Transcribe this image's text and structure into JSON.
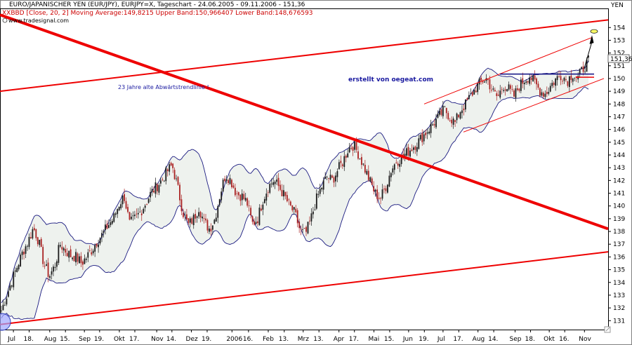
{
  "header": {
    "line1": "EURO/JAPANISCHER YEN (EUR/JPY), EURJPY=X, Tageschart - 24.06.2005 - 09.11.2006 - 151,36",
    "line2": "XXBBD [Close, 20, 2] Moving Average:149,8215 Upper Band:150,966407 Lower Band:148,676593",
    "watermark": "www.tradesignal.com",
    "unit": "YEN"
  },
  "annotations": {
    "trendline_label": "23 Jahre alte Abwärtstrendlinie !",
    "author": "erstellt von oegeat.com",
    "last_price": "151,36"
  },
  "colors": {
    "candle_up": "#1a1a1a",
    "candle_down": "#aa2222",
    "band": "#1a1a80",
    "band_fill": "#eef2ee",
    "trendline": "#ee0000"
  },
  "chart_data": {
    "type": "candlestick",
    "title": "EURO/JAPANISCHER YEN (EUR/JPY), EURJPY=X, Tageschart - 24.06.2005 - 09.11.2006 - 151,36",
    "ylabel": "YEN",
    "ylim": [
      130.3,
      155.5
    ],
    "y_ticks": [
      131,
      132,
      133,
      134,
      135,
      136,
      137,
      138,
      139,
      140,
      141,
      142,
      143,
      144,
      145,
      146,
      147,
      148,
      149,
      150,
      151,
      152,
      153,
      154
    ],
    "x_ticks": [
      "Jul",
      "18.",
      "Aug",
      "15.",
      "Sep",
      "19.",
      "Okt",
      "17.",
      "Nov",
      "14.",
      "Dez",
      "19.",
      "2006",
      "16.",
      "Feb",
      "13.",
      "Mrz",
      "13.",
      "Apr",
      "17.",
      "Mai",
      "15.",
      "Jun",
      "19.",
      "Jul",
      "17.",
      "Aug",
      "14.",
      "Sep",
      "18.",
      "Okt",
      "16.",
      "Nov"
    ],
    "x_tick_pos": [
      0.045,
      0.104,
      0.181,
      0.24,
      0.311,
      0.368,
      0.442,
      0.5,
      0.582,
      0.639,
      0.712,
      0.771,
      0.864,
      0.926,
      1.0,
      1.06,
      1.131,
      1.19,
      1.265,
      1.323,
      1.396,
      1.455,
      1.526,
      1.585,
      1.655,
      1.714,
      1.786,
      1.845,
      1.925,
      1.983,
      2.053,
      2.111,
      2.185
    ],
    "x_tick_scale_note": "",
    "close_path": [
      [
        0,
        131.8
      ],
      [
        0.02,
        133.0
      ],
      [
        0.04,
        134.2
      ],
      [
        0.06,
        135.3
      ],
      [
        0.08,
        136.4
      ],
      [
        0.1,
        137.2
      ],
      [
        0.12,
        138.3
      ],
      [
        0.14,
        137.2
      ],
      [
        0.16,
        135.4
      ],
      [
        0.18,
        134.5
      ],
      [
        0.2,
        135.3
      ],
      [
        0.22,
        137.0
      ],
      [
        0.24,
        136.5
      ],
      [
        0.26,
        136.1
      ],
      [
        0.28,
        136.0
      ],
      [
        0.3,
        135.5
      ],
      [
        0.32,
        136.0
      ],
      [
        0.34,
        136.6
      ],
      [
        0.36,
        137.3
      ],
      [
        0.38,
        137.8
      ],
      [
        0.4,
        138.5
      ],
      [
        0.42,
        139.0
      ],
      [
        0.44,
        140.1
      ],
      [
        0.46,
        140.8
      ],
      [
        0.48,
        138.6
      ],
      [
        0.5,
        139.0
      ],
      [
        0.52,
        139.5
      ],
      [
        0.54,
        140.2
      ],
      [
        0.56,
        141.0
      ],
      [
        0.58,
        141.5
      ],
      [
        0.6,
        142.0
      ],
      [
        0.62,
        142.7
      ],
      [
        0.64,
        143.2
      ],
      [
        0.66,
        141.5
      ],
      [
        0.68,
        139.5
      ],
      [
        0.7,
        138.5
      ],
      [
        0.72,
        139.0
      ],
      [
        0.74,
        139.9
      ],
      [
        0.76,
        138.7
      ],
      [
        0.78,
        138.2
      ],
      [
        0.8,
        139.0
      ],
      [
        0.82,
        141.0
      ],
      [
        0.84,
        142.5
      ],
      [
        0.86,
        142.0
      ],
      [
        0.88,
        141.0
      ],
      [
        0.9,
        140.8
      ],
      [
        0.92,
        140.3
      ],
      [
        0.94,
        138.6
      ],
      [
        0.96,
        139.0
      ],
      [
        0.98,
        140.5
      ],
      [
        1.0,
        141.5
      ],
      [
        1.02,
        142.0
      ],
      [
        1.04,
        141.5
      ],
      [
        1.06,
        140.8
      ],
      [
        1.08,
        140.0
      ],
      [
        1.1,
        139.4
      ],
      [
        1.12,
        138.0
      ],
      [
        1.14,
        137.8
      ],
      [
        1.16,
        139.0
      ],
      [
        1.18,
        140.5
      ],
      [
        1.2,
        141.5
      ],
      [
        1.22,
        142.3
      ],
      [
        1.24,
        142.0
      ],
      [
        1.26,
        142.8
      ],
      [
        1.28,
        143.5
      ],
      [
        1.3,
        144.5
      ],
      [
        1.32,
        144.8
      ],
      [
        1.34,
        144.0
      ],
      [
        1.36,
        143.0
      ],
      [
        1.38,
        142.0
      ],
      [
        1.4,
        141.0
      ],
      [
        1.42,
        140.6
      ],
      [
        1.44,
        141.5
      ],
      [
        1.46,
        142.8
      ],
      [
        1.48,
        143.5
      ],
      [
        1.5,
        143.8
      ],
      [
        1.52,
        144.2
      ],
      [
        1.54,
        144.6
      ],
      [
        1.56,
        145.0
      ],
      [
        1.58,
        145.5
      ],
      [
        1.6,
        146.0
      ],
      [
        1.62,
        146.5
      ],
      [
        1.64,
        147.0
      ],
      [
        1.66,
        147.6
      ],
      [
        1.68,
        147.0
      ],
      [
        1.7,
        146.5
      ],
      [
        1.72,
        147.5
      ],
      [
        1.74,
        148.0
      ],
      [
        1.76,
        148.7
      ],
      [
        1.78,
        149.3
      ],
      [
        1.8,
        149.8
      ],
      [
        1.82,
        150.0
      ],
      [
        1.84,
        149.0
      ],
      [
        1.86,
        148.5
      ],
      [
        1.88,
        149.5
      ],
      [
        1.9,
        149.2
      ],
      [
        1.92,
        148.6
      ],
      [
        1.94,
        149.4
      ],
      [
        1.96,
        149.9
      ],
      [
        1.98,
        150.2
      ],
      [
        2.0,
        149.6
      ],
      [
        2.02,
        149.0
      ],
      [
        2.04,
        148.8
      ],
      [
        2.06,
        149.5
      ],
      [
        2.08,
        150.0
      ],
      [
        2.1,
        150.3
      ],
      [
        2.12,
        149.8
      ],
      [
        2.14,
        150.4
      ],
      [
        2.16,
        150.0
      ],
      [
        2.18,
        150.8
      ],
      [
        2.2,
        151.36
      ]
    ],
    "last": 151.36,
    "bollinger": {
      "period": 20,
      "stddev": 2,
      "moving_average": 149.8215,
      "upper": 150.966407,
      "lower": 148.676593
    }
  }
}
